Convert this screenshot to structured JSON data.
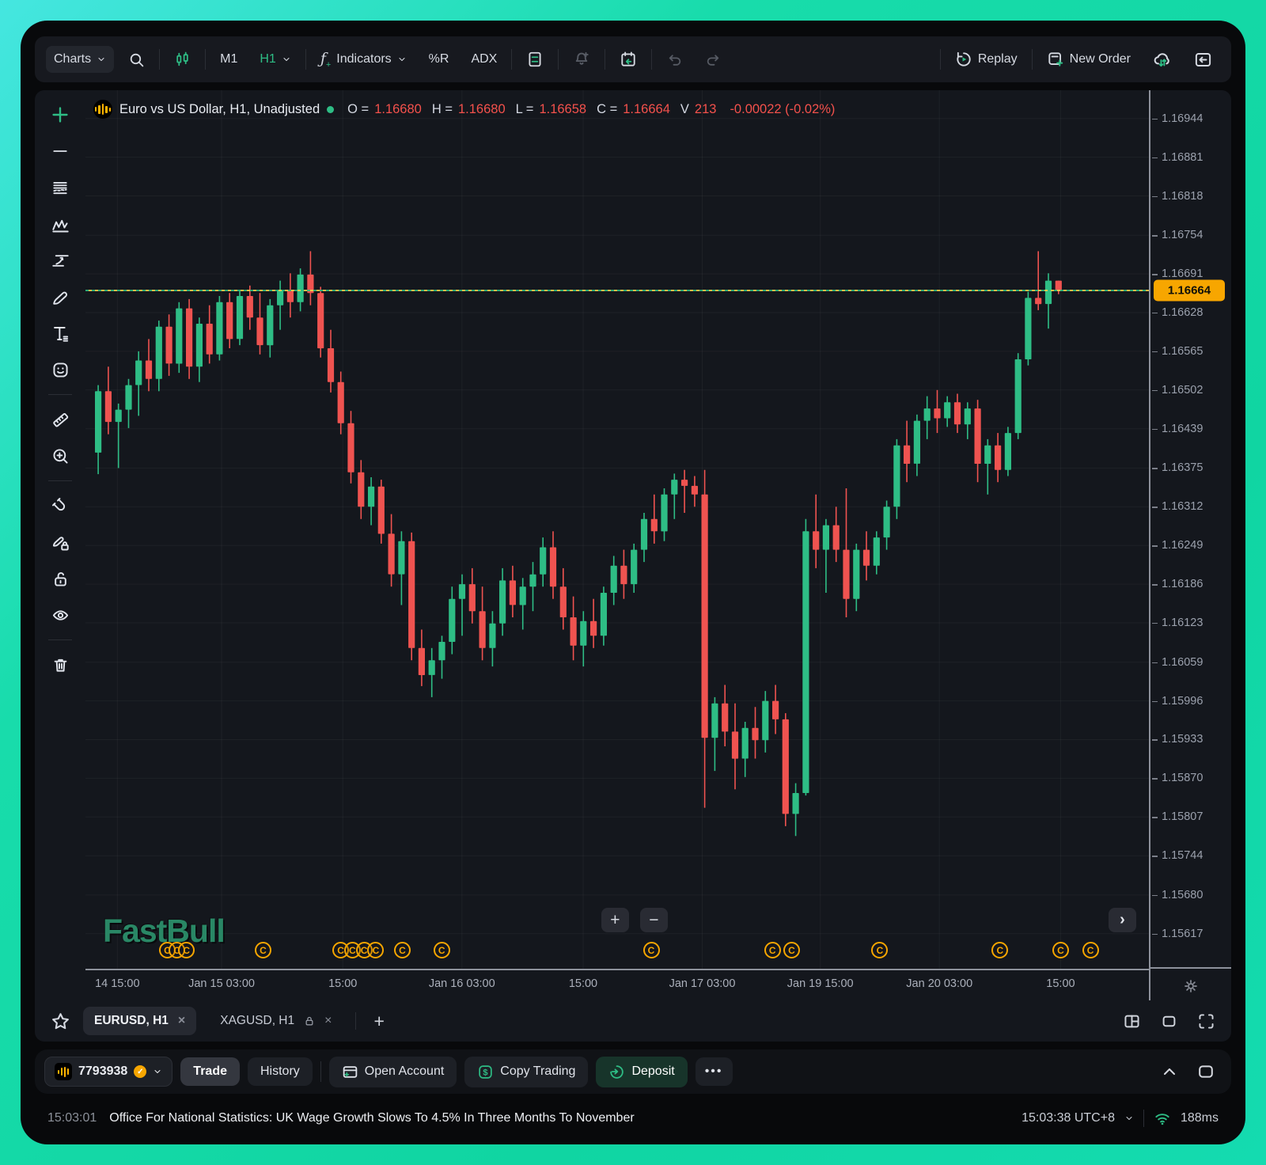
{
  "toolbar": {
    "charts_label": "Charts",
    "timeframe_m1": "M1",
    "timeframe_h1": "H1",
    "indicators_label": "Indicators",
    "indicator_wpr": "%R",
    "indicator_adx": "ADX",
    "replay_label": "Replay",
    "new_order_label": "New Order",
    "icons": [
      "chevron-down",
      "search",
      "candlestick-chart",
      "chevron-down",
      "fx-function-plus",
      "layout-panels",
      "alert-bell-plus",
      "economic-calendar-sync",
      "undo",
      "redo",
      "replay-circular-play",
      "order-ticket-plus",
      "cloud-sync",
      "collapse-panel-right"
    ]
  },
  "chart_header": {
    "symbol_title": "Euro vs US Dollar, H1, Unadjusted",
    "open_label": "O =",
    "open": "1.16680",
    "high_label": "H =",
    "high": "1.16680",
    "low_label": "L =",
    "low": "1.16658",
    "close_label": "C =",
    "close": "1.16664",
    "volume_label": "V",
    "volume": "213",
    "change": "-0.00022 (-0.02%)"
  },
  "left_toolbar": {
    "tools": [
      "add-plus",
      "trend-line",
      "parallel-lines",
      "zigzag-pattern",
      "trend-projection",
      "brush",
      "text",
      "emoji",
      "ruler",
      "zoom-in",
      "magnet",
      "brush-lock",
      "unlock",
      "eye",
      "trash"
    ]
  },
  "chart_data": {
    "type": "candlestick",
    "symbol": "EURUSD",
    "timeframe": "H1",
    "title": "Euro vs US Dollar, H1, Unadjusted",
    "up_color": "#2ebd85",
    "down_color": "#ef5350",
    "grid": true,
    "current_price": 1.16664,
    "current_price_badge_color": "#f7a600",
    "price_max": 1.1699,
    "price_min": 1.1556,
    "price_axis_ticks": [
      1.16944,
      1.16881,
      1.16818,
      1.16754,
      1.16691,
      1.16628,
      1.16565,
      1.16502,
      1.16439,
      1.16375,
      1.16312,
      1.16249,
      1.16186,
      1.16123,
      1.16059,
      1.15996,
      1.15933,
      1.1587,
      1.15807,
      1.15744,
      1.1568,
      1.15617
    ],
    "x_axis_ticks": [
      {
        "label": "14 15:00",
        "pct": 3.0
      },
      {
        "label": "Jan 15 03:00",
        "pct": 12.8
      },
      {
        "label": "15:00",
        "pct": 24.2
      },
      {
        "label": "Jan 16 03:00",
        "pct": 35.4
      },
      {
        "label": "15:00",
        "pct": 46.8
      },
      {
        "label": "Jan 17 03:00",
        "pct": 58.0
      },
      {
        "label": "Jan 19 15:00",
        "pct": 69.1
      },
      {
        "label": "Jan 20 03:00",
        "pct": 80.3
      },
      {
        "label": "15:00",
        "pct": 91.7
      }
    ],
    "news_marker_glyph": "C",
    "news_marker_color": "#f7a600",
    "news_marker_pct": [
      7.7,
      8.6,
      9.5,
      16.7,
      24.0,
      25.1,
      26.2,
      27.3,
      29.8,
      33.5,
      53.2,
      64.6,
      66.4,
      74.7,
      86.0,
      91.7,
      94.5
    ],
    "watermark": "FastBull",
    "candles": [
      [
        1.164,
        1.1651,
        1.16365,
        1.165
      ],
      [
        1.165,
        1.1654,
        1.1643,
        1.1645
      ],
      [
        1.1645,
        1.1648,
        1.16375,
        1.1647
      ],
      [
        1.1647,
        1.1652,
        1.1644,
        1.1651
      ],
      [
        1.1651,
        1.16565,
        1.1646,
        1.1655
      ],
      [
        1.1655,
        1.16585,
        1.165,
        1.1652
      ],
      [
        1.1652,
        1.16615,
        1.165,
        1.16605
      ],
      [
        1.16605,
        1.16625,
        1.16525,
        1.16545
      ],
      [
        1.16545,
        1.16645,
        1.1653,
        1.16635
      ],
      [
        1.16635,
        1.1665,
        1.1652,
        1.1654
      ],
      [
        1.1654,
        1.1662,
        1.16515,
        1.1661
      ],
      [
        1.1661,
        1.1664,
        1.16545,
        1.1656
      ],
      [
        1.1656,
        1.16655,
        1.1655,
        1.16645
      ],
      [
        1.16645,
        1.1666,
        1.1657,
        1.16585
      ],
      [
        1.16585,
        1.16665,
        1.16575,
        1.16655
      ],
      [
        1.16655,
        1.16672,
        1.166,
        1.1662
      ],
      [
        1.1662,
        1.1666,
        1.1656,
        1.16575
      ],
      [
        1.16575,
        1.1665,
        1.16555,
        1.1664
      ],
      [
        1.1664,
        1.1668,
        1.166,
        1.16665
      ],
      [
        1.16665,
        1.16692,
        1.1662,
        1.16645
      ],
      [
        1.16645,
        1.167,
        1.1663,
        1.1669
      ],
      [
        1.1669,
        1.16728,
        1.1664,
        1.1666
      ],
      [
        1.1666,
        1.1667,
        1.16555,
        1.1657
      ],
      [
        1.1657,
        1.166,
        1.16498,
        1.16515
      ],
      [
        1.16515,
        1.16532,
        1.1643,
        1.16448
      ],
      [
        1.16448,
        1.16468,
        1.1635,
        1.16368
      ],
      [
        1.16368,
        1.16388,
        1.16292,
        1.16312
      ],
      [
        1.16312,
        1.1636,
        1.16282,
        1.16345
      ],
      [
        1.16345,
        1.16356,
        1.16252,
        1.16268
      ],
      [
        1.16268,
        1.163,
        1.16182,
        1.16202
      ],
      [
        1.16202,
        1.16272,
        1.16152,
        1.16256
      ],
      [
        1.16256,
        1.1627,
        1.16062,
        1.16082
      ],
      [
        1.16082,
        1.16112,
        1.1602,
        1.16038
      ],
      [
        1.16038,
        1.16082,
        1.16002,
        1.16062
      ],
      [
        1.16062,
        1.16102,
        1.16032,
        1.16092
      ],
      [
        1.16092,
        1.16182,
        1.16072,
        1.16162
      ],
      [
        1.16162,
        1.16202,
        1.16102,
        1.16186
      ],
      [
        1.16186,
        1.16212,
        1.16122,
        1.16142
      ],
      [
        1.16142,
        1.16182,
        1.16062,
        1.16082
      ],
      [
        1.16082,
        1.16142,
        1.16052,
        1.16122
      ],
      [
        1.16122,
        1.16212,
        1.16102,
        1.16192
      ],
      [
        1.16192,
        1.16216,
        1.16132,
        1.16152
      ],
      [
        1.16152,
        1.16196,
        1.16112,
        1.16182
      ],
      [
        1.16182,
        1.16222,
        1.16142,
        1.16202
      ],
      [
        1.16202,
        1.16262,
        1.16182,
        1.16246
      ],
      [
        1.16246,
        1.16272,
        1.16162,
        1.16182
      ],
      [
        1.16182,
        1.16212,
        1.16112,
        1.16132
      ],
      [
        1.16132,
        1.16166,
        1.16062,
        1.16086
      ],
      [
        1.16086,
        1.16142,
        1.16052,
        1.16126
      ],
      [
        1.16126,
        1.16162,
        1.16082,
        1.16102
      ],
      [
        1.16102,
        1.16182,
        1.16086,
        1.16172
      ],
      [
        1.16172,
        1.16232,
        1.16152,
        1.16216
      ],
      [
        1.16216,
        1.16242,
        1.16162,
        1.16186
      ],
      [
        1.16186,
        1.16252,
        1.16172,
        1.16242
      ],
      [
        1.16242,
        1.16302,
        1.16222,
        1.16292
      ],
      [
        1.16292,
        1.16332,
        1.16252,
        1.16272
      ],
      [
        1.16272,
        1.16342,
        1.16256,
        1.16332
      ],
      [
        1.16332,
        1.16366,
        1.16292,
        1.16356
      ],
      [
        1.16356,
        1.16372,
        1.16302,
        1.16346
      ],
      [
        1.16346,
        1.16362,
        1.16312,
        1.16332
      ],
      [
        1.16332,
        1.16372,
        1.15822,
        1.15936
      ],
      [
        1.15936,
        1.16002,
        1.15882,
        1.15992
      ],
      [
        1.15992,
        1.16022,
        1.15922,
        1.15946
      ],
      [
        1.15946,
        1.15992,
        1.15852,
        1.15902
      ],
      [
        1.15902,
        1.15962,
        1.15872,
        1.15952
      ],
      [
        1.15952,
        1.15986,
        1.15902,
        1.15932
      ],
      [
        1.15932,
        1.16012,
        1.15912,
        1.15996
      ],
      [
        1.15996,
        1.16022,
        1.15942,
        1.15966
      ],
      [
        1.15966,
        1.15976,
        1.15792,
        1.15812
      ],
      [
        1.15812,
        1.15862,
        1.15776,
        1.15846
      ],
      [
        1.15846,
        1.16292,
        1.15842,
        1.16272
      ],
      [
        1.16272,
        1.16332,
        1.16212,
        1.16242
      ],
      [
        1.16242,
        1.16292,
        1.16172,
        1.16282
      ],
      [
        1.16282,
        1.16312,
        1.16222,
        1.16242
      ],
      [
        1.16242,
        1.16342,
        1.16132,
        1.16162
      ],
      [
        1.16162,
        1.16252,
        1.16142,
        1.16242
      ],
      [
        1.16242,
        1.16272,
        1.16192,
        1.16216
      ],
      [
        1.16216,
        1.16272,
        1.16202,
        1.16262
      ],
      [
        1.16262,
        1.16322,
        1.16242,
        1.16312
      ],
      [
        1.16312,
        1.16422,
        1.16292,
        1.16412
      ],
      [
        1.16412,
        1.16452,
        1.16352,
        1.16382
      ],
      [
        1.16382,
        1.16462,
        1.16362,
        1.16452
      ],
      [
        1.16452,
        1.16492,
        1.16422,
        1.16472
      ],
      [
        1.16472,
        1.16502,
        1.16432,
        1.16456
      ],
      [
        1.16456,
        1.16492,
        1.16442,
        1.16482
      ],
      [
        1.16482,
        1.16496,
        1.16432,
        1.16446
      ],
      [
        1.16446,
        1.16482,
        1.16422,
        1.16472
      ],
      [
        1.16472,
        1.16486,
        1.16352,
        1.16382
      ],
      [
        1.16382,
        1.16422,
        1.16332,
        1.16412
      ],
      [
        1.16412,
        1.16432,
        1.16352,
        1.16372
      ],
      [
        1.16372,
        1.16442,
        1.16362,
        1.16432
      ],
      [
        1.16432,
        1.16562,
        1.16422,
        1.16552
      ],
      [
        1.16552,
        1.16662,
        1.16542,
        1.16652
      ],
      [
        1.16652,
        1.16728,
        1.16632,
        1.16642
      ],
      [
        1.16642,
        1.16692,
        1.16602,
        1.1668
      ],
      [
        1.1668,
        1.1668,
        1.16658,
        1.16664
      ]
    ]
  },
  "plot_controls": {
    "zoom_in": "+",
    "zoom_out": "−",
    "scroll_right": "›"
  },
  "tabs": {
    "active": {
      "label": "EURUSD, H1",
      "close": "×"
    },
    "inactive": {
      "label": "XAGUSD, H1",
      "close": "×"
    },
    "add": "+",
    "icons": [
      "favorites-star",
      "lock",
      "split-layout",
      "maximize",
      "fullscreen"
    ]
  },
  "account_bar": {
    "account_id": "7793938",
    "trade_label": "Trade",
    "history_label": "History",
    "open_account_label": "Open Account",
    "copy_trading_label": "Copy Trading",
    "deposit_label": "Deposit",
    "more_label": "•••",
    "icons": [
      "account-logo",
      "verified-badge",
      "chevron-down",
      "open-account-card",
      "copy-trading-dollar",
      "deposit-arrow",
      "collapse-up",
      "expand-window"
    ]
  },
  "status_bar": {
    "time": "15:03:01",
    "headline": "Office For National Statistics: UK Wage Growth Slows To 4.5% In Three Months To November",
    "clock": "15:03:38 UTC+8",
    "latency": "188ms",
    "icons": [
      "chevron-down",
      "wifi-signal"
    ]
  }
}
